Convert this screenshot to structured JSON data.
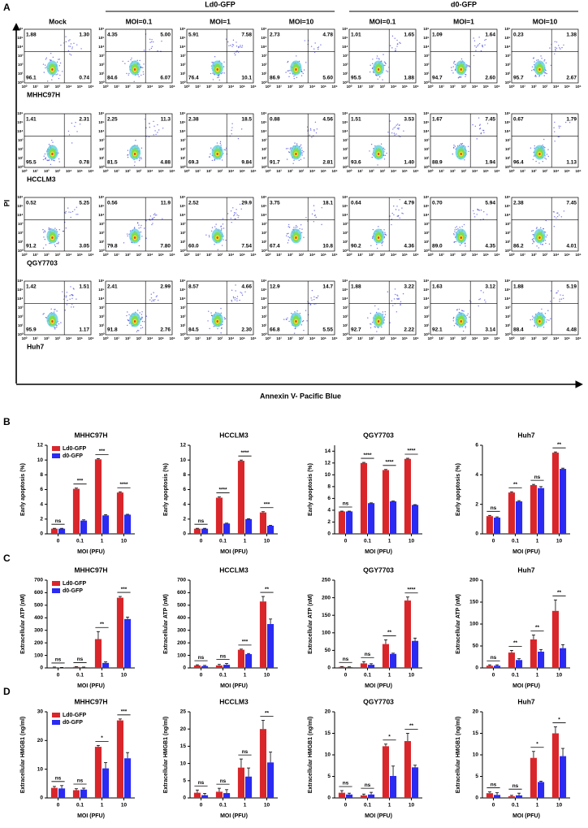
{
  "panel_labels": [
    "A",
    "B",
    "C",
    "D"
  ],
  "flow": {
    "group_headers": [
      "Ld0-GFP",
      "d0-GFP"
    ],
    "columns": [
      "Mock",
      "MOI=0.1",
      "MOI=1",
      "MOI=10",
      "MOI=0.1",
      "MOI=1",
      "MOI=10"
    ],
    "y_label": "PI",
    "x_label": "Annexin V- Pacific Blue",
    "axis_ticks": [
      "10⁰",
      "10¹",
      "10²",
      "10³",
      "10⁴",
      "10⁵",
      "10⁶"
    ],
    "rows": [
      {
        "name": "MHHC97H",
        "quadrants": [
          [
            "1.88",
            "1.30",
            "96.1",
            "0.74"
          ],
          [
            "4.35",
            "5.00",
            "84.6",
            "6.07"
          ],
          [
            "5.91",
            "7.58",
            "76.4",
            "10.1"
          ],
          [
            "2.73",
            "4.78",
            "86.9",
            "5.60"
          ],
          [
            "1.01",
            "1.65",
            "95.5",
            "1.88"
          ],
          [
            "1.09",
            "1.64",
            "94.7",
            "2.60"
          ],
          [
            "0.23",
            "1.38",
            "95.7",
            "2.67"
          ]
        ]
      },
      {
        "name": "HCCLM3",
        "quadrants": [
          [
            "1.41",
            "2.31",
            "95.5",
            "0.78"
          ],
          [
            "2.25",
            "11.3",
            "81.5",
            "4.88"
          ],
          [
            "2.38",
            "18.5",
            "69.3",
            "9.84"
          ],
          [
            "0.88",
            "4.56",
            "91.7",
            "2.81"
          ],
          [
            "1.51",
            "3.53",
            "93.6",
            "1.40"
          ],
          [
            "1.67",
            "7.45",
            "88.9",
            "1.94"
          ],
          [
            "0.67",
            "1.79",
            "96.4",
            "1.13"
          ]
        ]
      },
      {
        "name": "QGY7703",
        "quadrants": [
          [
            "0.52",
            "5.25",
            "91.2",
            "3.05"
          ],
          [
            "0.56",
            "11.9",
            "79.8",
            "7.80"
          ],
          [
            "2.52",
            "29.9",
            "60.0",
            "7.54"
          ],
          [
            "3.75",
            "18.1",
            "67.4",
            "10.8"
          ],
          [
            "0.64",
            "4.79",
            "90.2",
            "4.36"
          ],
          [
            "0.70",
            "5.94",
            "89.0",
            "4.35"
          ],
          [
            "2.38",
            "7.45",
            "86.2",
            "4.01"
          ]
        ]
      },
      {
        "name": "Huh7",
        "quadrants": [
          [
            "1.42",
            "1.51",
            "95.9",
            "1.17"
          ],
          [
            "2.41",
            "2.99",
            "91.8",
            "2.76"
          ],
          [
            "8.57",
            "4.66",
            "84.5",
            "2.30"
          ],
          [
            "12.9",
            "14.7",
            "66.8",
            "5.55"
          ],
          [
            "1.88",
            "3.22",
            "92.7",
            "2.22"
          ],
          [
            "1.63",
            "3.12",
            "92.1",
            "3.14"
          ],
          [
            "1.88",
            "5.19",
            "88.4",
            "4.48"
          ]
        ]
      }
    ]
  },
  "chart_data": [
    {
      "type": "bar",
      "title": "MHHC97H",
      "x_label": "MOI (PFU)",
      "y_label": "Early apoptosis (%)",
      "categories": [
        "0",
        "0.1",
        "1",
        "10"
      ],
      "ylim": [
        0,
        12
      ],
      "yticks": [
        0,
        2,
        4,
        6,
        8,
        10,
        12
      ],
      "legend": "upper left",
      "series": [
        {
          "name": "Ld0-GFP",
          "color": "#d9262b",
          "values": [
            0.7,
            6.1,
            10.1,
            5.6
          ],
          "errors": [
            0.05,
            0.1,
            0.1,
            0.1
          ]
        },
        {
          "name": "d0-GFP",
          "color": "#2a2af2",
          "values": [
            0.7,
            1.8,
            2.5,
            2.6
          ],
          "errors": [
            0.05,
            0.1,
            0.1,
            0.05
          ]
        }
      ],
      "annotations": [
        "ns",
        "***",
        "***",
        "****"
      ]
    },
    {
      "type": "bar",
      "title": "HCCLM3",
      "x_label": "MOI (PFU)",
      "y_label": "Early apoptosis (%)",
      "categories": [
        "0",
        "0.1",
        "1",
        "10"
      ],
      "ylim": [
        0,
        12
      ],
      "yticks": [
        0,
        2,
        4,
        6,
        8,
        10,
        12
      ],
      "series": [
        {
          "name": "Ld0-GFP",
          "color": "#d9262b",
          "values": [
            0.7,
            4.9,
            9.9,
            2.9
          ],
          "errors": [
            0.05,
            0.1,
            0.1,
            0.1
          ]
        },
        {
          "name": "d0-GFP",
          "color": "#2a2af2",
          "values": [
            0.7,
            1.4,
            2.0,
            1.1
          ],
          "errors": [
            0.05,
            0.05,
            0.05,
            0.05
          ]
        }
      ],
      "annotations": [
        "ns",
        "****",
        "****",
        "***"
      ]
    },
    {
      "type": "bar",
      "title": "QGY7703",
      "x_label": "MOI (PFU)",
      "y_label": "Early apoptosis (%)",
      "categories": [
        "0",
        "0.1",
        "1",
        "10"
      ],
      "ylim": [
        0,
        15
      ],
      "yticks": [
        0,
        2,
        4,
        6,
        8,
        10,
        12,
        14
      ],
      "series": [
        {
          "name": "Ld0-GFP",
          "color": "#d9262b",
          "values": [
            3.8,
            12.0,
            10.8,
            12.7
          ],
          "errors": [
            0.05,
            0.1,
            0.1,
            0.1
          ]
        },
        {
          "name": "d0-GFP",
          "color": "#2a2af2",
          "values": [
            3.8,
            5.2,
            5.5,
            4.9
          ],
          "errors": [
            0.05,
            0.05,
            0.05,
            0.05
          ]
        }
      ],
      "annotations": [
        "ns",
        "****",
        "****",
        "****"
      ]
    },
    {
      "type": "bar",
      "title": "Huh7",
      "x_label": "MOI (PFU)",
      "y_label": "Early apoptosis (%)",
      "categories": [
        "0",
        "0.1",
        "1",
        "10"
      ],
      "ylim": [
        0,
        6
      ],
      "yticks": [
        0,
        2,
        4,
        6
      ],
      "series": [
        {
          "name": "Ld0-GFP",
          "color": "#d9262b",
          "values": [
            1.2,
            2.8,
            3.3,
            5.5
          ],
          "errors": [
            0.05,
            0.05,
            0.05,
            0.05
          ]
        },
        {
          "name": "d0-GFP",
          "color": "#2a2af2",
          "values": [
            1.1,
            2.2,
            3.1,
            4.4
          ],
          "errors": [
            0.05,
            0.05,
            0.1,
            0.05
          ]
        }
      ],
      "annotations": [
        "ns",
        "**",
        "ns",
        "**"
      ]
    },
    {
      "type": "bar",
      "title": "MHHC97H",
      "x_label": "MOI (PFU)",
      "y_label": "Extracellular ATP (nM)",
      "categories": [
        "0",
        "0.1",
        "1",
        "10"
      ],
      "ylim": [
        0,
        700
      ],
      "yticks": [
        0,
        100,
        200,
        300,
        400,
        500,
        600,
        700
      ],
      "legend": "upper left",
      "series": [
        {
          "name": "Ld0-GFP",
          "color": "#d9262b",
          "values": [
            5,
            8,
            230,
            560
          ],
          "errors": [
            2,
            2,
            60,
            10
          ]
        },
        {
          "name": "d0-GFP",
          "color": "#2a2af2",
          "values": [
            3,
            5,
            40,
            390
          ],
          "errors": [
            1,
            2,
            8,
            15
          ]
        }
      ],
      "annotations": [
        "ns",
        "ns",
        "**",
        "***"
      ]
    },
    {
      "type": "bar",
      "title": "HCCLM3",
      "x_label": "MOI (PFU)",
      "y_label": "Extracellular ATP (nM)",
      "categories": [
        "0",
        "0.1",
        "1",
        "10"
      ],
      "ylim": [
        0,
        700
      ],
      "yticks": [
        0,
        100,
        200,
        300,
        400,
        500,
        600,
        700
      ],
      "series": [
        {
          "name": "Ld0-GFP",
          "color": "#d9262b",
          "values": [
            20,
            20,
            145,
            530
          ],
          "errors": [
            5,
            8,
            5,
            40
          ]
        },
        {
          "name": "d0-GFP",
          "color": "#2a2af2",
          "values": [
            15,
            25,
            110,
            350
          ],
          "errors": [
            5,
            10,
            5,
            40
          ]
        }
      ],
      "annotations": [
        "ns",
        "ns",
        "***",
        "**"
      ]
    },
    {
      "type": "bar",
      "title": "QGY7703",
      "x_label": "MOI (PFU)",
      "y_label": "Extracellular ATP (nM)",
      "categories": [
        "0",
        "0.1",
        "1",
        "10"
      ],
      "ylim": [
        0,
        250
      ],
      "yticks": [
        0,
        50,
        100,
        150,
        200,
        250
      ],
      "series": [
        {
          "name": "Ld0-GFP",
          "color": "#d9262b",
          "values": [
            3,
            13,
            68,
            192
          ],
          "errors": [
            1,
            5,
            12,
            10
          ]
        },
        {
          "name": "d0-GFP",
          "color": "#2a2af2",
          "values": [
            2,
            9,
            40,
            77
          ],
          "errors": [
            1,
            3,
            2,
            8
          ]
        }
      ],
      "annotations": [
        "ns",
        "ns",
        "**",
        "****"
      ]
    },
    {
      "type": "bar",
      "title": "Huh7",
      "x_label": "MOI (PFU)",
      "y_label": "Extracellular ATP (nM)",
      "categories": [
        "0",
        "0.1",
        "1",
        "10"
      ],
      "ylim": [
        0,
        200
      ],
      "yticks": [
        0,
        50,
        100,
        150,
        200
      ],
      "series": [
        {
          "name": "Ld0-GFP",
          "color": "#d9262b",
          "values": [
            5,
            35,
            65,
            130
          ],
          "errors": [
            2,
            5,
            10,
            25
          ]
        },
        {
          "name": "d0-GFP",
          "color": "#2a2af2",
          "values": [
            5,
            18,
            37,
            45
          ],
          "errors": [
            2,
            3,
            5,
            8
          ]
        }
      ],
      "annotations": [
        "ns",
        "**",
        "**",
        "**"
      ]
    },
    {
      "type": "bar",
      "title": "MHHC97H",
      "x_label": "MOI (PFU)",
      "y_label": "Extracellular HMGB1 (ng/ml)",
      "categories": [
        "0",
        "0.1",
        "1",
        "10"
      ],
      "ylim": [
        0,
        30
      ],
      "yticks": [
        0,
        10,
        20,
        30
      ],
      "legend": "upper left",
      "series": [
        {
          "name": "Ld0-GFP",
          "color": "#d9262b",
          "values": [
            3.5,
            2.7,
            17.8,
            27
          ],
          "errors": [
            0.5,
            0.5,
            0.5,
            0.5
          ]
        },
        {
          "name": "d0-GFP",
          "color": "#2a2af2",
          "values": [
            3.3,
            2.9,
            10.3,
            13.8
          ],
          "errors": [
            1,
            0.5,
            2,
            2
          ]
        }
      ],
      "annotations": [
        "ns",
        "ns",
        "*",
        "***"
      ]
    },
    {
      "type": "bar",
      "title": "HCCLM3",
      "x_label": "MOI (PFU)",
      "y_label": "Extracellular HMGB1 (ng/ml)",
      "categories": [
        "0",
        "0.1",
        "1",
        "10"
      ],
      "ylim": [
        0,
        25
      ],
      "yticks": [
        0,
        5,
        10,
        15,
        20,
        25
      ],
      "series": [
        {
          "name": "Ld0-GFP",
          "color": "#d9262b",
          "values": [
            1.5,
            1.8,
            8.8,
            20
          ],
          "errors": [
            0.8,
            1,
            2.5,
            2.5
          ]
        },
        {
          "name": "d0-GFP",
          "color": "#2a2af2",
          "values": [
            0.8,
            1.4,
            6.2,
            10.3
          ],
          "errors": [
            0.5,
            1,
            2.5,
            3
          ]
        }
      ],
      "annotations": [
        "ns",
        "ns",
        "ns",
        "**"
      ]
    },
    {
      "type": "bar",
      "title": "QGY7703",
      "x_label": "MOI (PFU)",
      "y_label": "Extracellular HMGB1 (ng/ml)",
      "categories": [
        "0",
        "0.1",
        "1",
        "10"
      ],
      "ylim": [
        0,
        20
      ],
      "yticks": [
        0,
        5,
        10,
        15,
        20
      ],
      "series": [
        {
          "name": "Ld0-GFP",
          "color": "#d9262b",
          "values": [
            1.2,
            0.6,
            12,
            13.2
          ],
          "errors": [
            0.5,
            0.3,
            0.5,
            1.8
          ]
        },
        {
          "name": "d0-GFP",
          "color": "#2a2af2",
          "values": [
            0.8,
            0.8,
            5.1,
            7.1
          ],
          "errors": [
            0.3,
            0.5,
            2.3,
            0.5
          ]
        }
      ],
      "annotations": [
        "ns",
        "ns",
        "*",
        "**"
      ]
    },
    {
      "type": "bar",
      "title": "Huh7",
      "x_label": "MOI (PFU)",
      "y_label": "Extracellular HMGB1 (ng/ml)",
      "categories": [
        "0",
        "0.1",
        "1",
        "10"
      ],
      "ylim": [
        0,
        20
      ],
      "yticks": [
        0,
        5,
        10,
        15,
        20
      ],
      "series": [
        {
          "name": "Ld0-GFP",
          "color": "#d9262b",
          "values": [
            1.1,
            0.4,
            9.3,
            15
          ],
          "errors": [
            0.3,
            0.2,
            1.5,
            1.5
          ]
        },
        {
          "name": "d0-GFP",
          "color": "#2a2af2",
          "values": [
            0.7,
            0.6,
            3.7,
            9.7
          ],
          "errors": [
            0.5,
            0.5,
            0.2,
            1.8
          ]
        }
      ],
      "annotations": [
        "ns",
        "ns",
        "*",
        "*"
      ]
    }
  ]
}
